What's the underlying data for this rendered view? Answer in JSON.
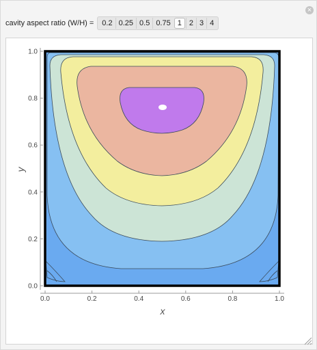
{
  "control": {
    "label": "cavity aspect ratio (W/H) =",
    "options": [
      "0.2",
      "0.25",
      "0.5",
      "0.75",
      "1",
      "2",
      "3",
      "4"
    ],
    "selected": "1"
  },
  "window": {
    "close_glyph": "×"
  },
  "chart_data": {
    "type": "contour",
    "xlabel": "x",
    "ylabel": "y",
    "xlim": [
      0,
      1
    ],
    "ylim": [
      0,
      1
    ],
    "xticks": [
      "0.0",
      "0.2",
      "0.4",
      "0.6",
      "0.8",
      "1.0"
    ],
    "yticks": [
      "0.0",
      "0.2",
      "0.4",
      "0.6",
      "0.8",
      "1.0"
    ],
    "grid": false,
    "vortex_center": {
      "x": 0.5,
      "y": 0.77
    },
    "contour_colors": [
      "#6aaaf0",
      "#86c0f2",
      "#cce4d6",
      "#f3ee9e",
      "#ebb6a0",
      "#c07aec",
      "#ffffff"
    ]
  }
}
